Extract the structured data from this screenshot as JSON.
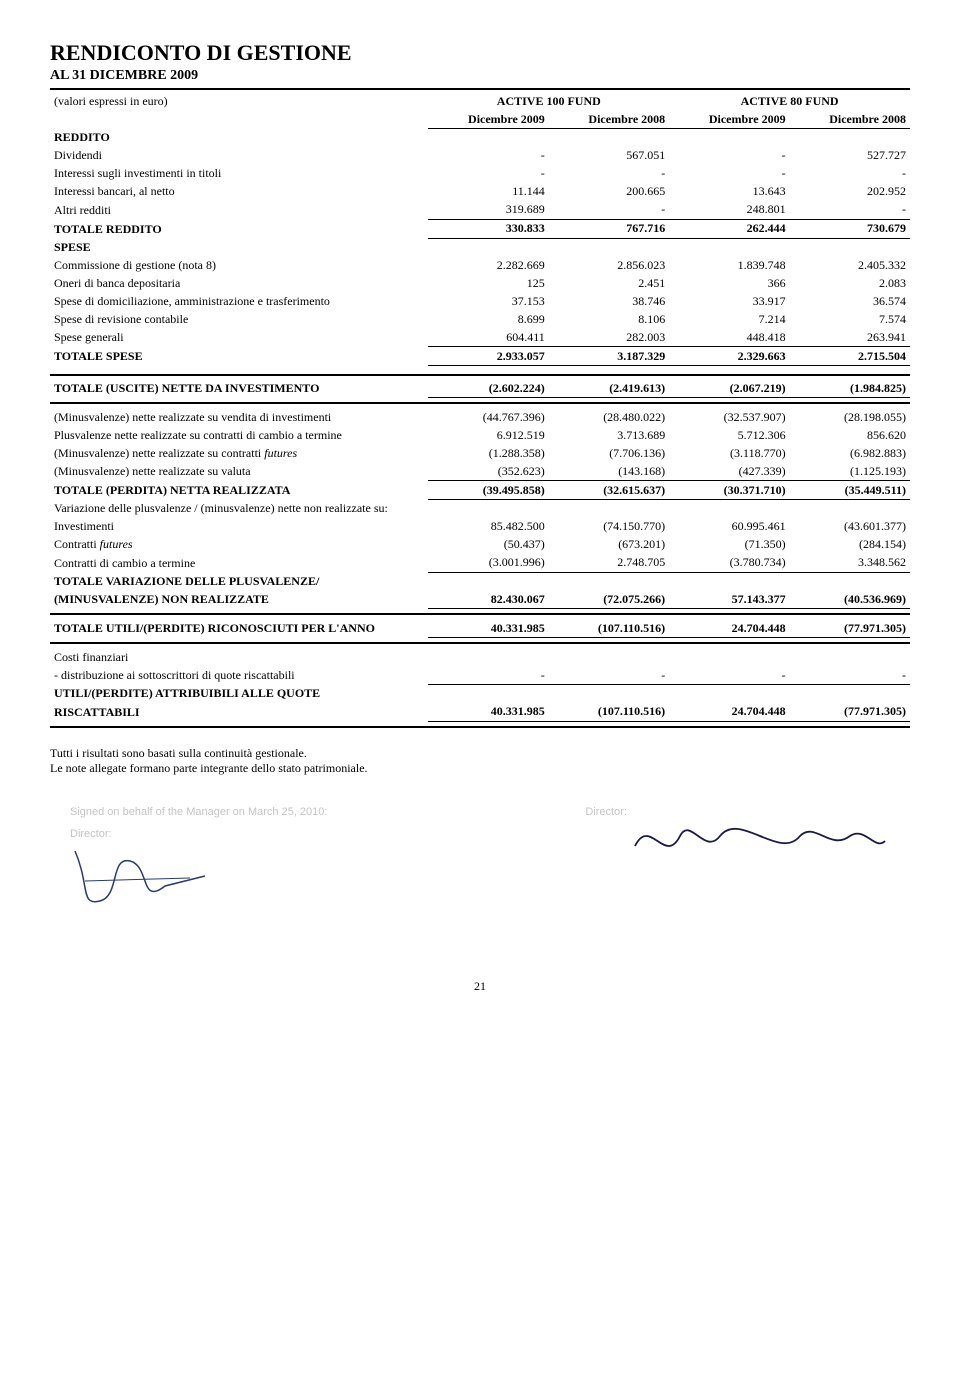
{
  "title": "RENDICONTO DI GESTIONE",
  "subtitle": "AL 31 DICEMBRE 2009",
  "units_note": "(valori espressi in euro)",
  "funds": [
    {
      "name": "ACTIVE 100 FUND",
      "years": [
        "Dicembre 2009",
        "Dicembre 2008"
      ]
    },
    {
      "name": "ACTIVE 80 FUND",
      "years": [
        "Dicembre 2009",
        "Dicembre 2008"
      ]
    }
  ],
  "sections": {
    "reddito": {
      "header": "REDDITO",
      "rows": [
        {
          "label": "Dividendi",
          "vals": [
            "-",
            "567.051",
            "-",
            "527.727"
          ]
        },
        {
          "label": "Interessi sugli investimenti in titoli",
          "vals": [
            "-",
            "-",
            "-",
            "-"
          ]
        },
        {
          "label": "Interessi bancari, al netto",
          "vals": [
            "11.144",
            "200.665",
            "13.643",
            "202.952"
          ]
        },
        {
          "label": "Altri redditi",
          "vals": [
            "319.689",
            "-",
            "248.801",
            "-"
          ],
          "underline": true
        }
      ],
      "total": {
        "label": "TOTALE REDDITO",
        "vals": [
          "330.833",
          "767.716",
          "262.444",
          "730.679"
        ]
      }
    },
    "spese": {
      "header": "SPESE",
      "rows": [
        {
          "label": "Commissione di gestione (nota 8)",
          "vals": [
            "2.282.669",
            "2.856.023",
            "1.839.748",
            "2.405.332"
          ]
        },
        {
          "label": "Oneri di banca depositaria",
          "vals": [
            "125",
            "2.451",
            "366",
            "2.083"
          ]
        },
        {
          "label": "Spese di domiciliazione, amministrazione e trasferimento",
          "vals": [
            "37.153",
            "38.746",
            "33.917",
            "36.574"
          ]
        },
        {
          "label": "Spese di revisione contabile",
          "vals": [
            "8.699",
            "8.106",
            "7.214",
            "7.574"
          ]
        },
        {
          "label": "Spese generali",
          "vals": [
            "604.411",
            "282.003",
            "448.418",
            "263.941"
          ],
          "underline": true
        }
      ],
      "total": {
        "label": "TOTALE SPESE",
        "vals": [
          "2.933.057",
          "3.187.329",
          "2.329.663",
          "2.715.504"
        ]
      }
    },
    "net_invest": {
      "label": "TOTALE (USCITE) NETTE DA INVESTIMENTO",
      "vals": [
        "(2.602.224)",
        "(2.419.613)",
        "(2.067.219)",
        "(1.984.825)"
      ]
    },
    "realized": {
      "rows": [
        {
          "label": "(Minusvalenze) nette realizzate su vendita di investimenti",
          "vals": [
            "(44.767.396)",
            "(28.480.022)",
            "(32.537.907)",
            "(28.198.055)"
          ]
        },
        {
          "label": "Plusvalenze nette realizzate su contratti di cambio a termine",
          "vals": [
            "6.912.519",
            "3.713.689",
            "5.712.306",
            "856.620"
          ]
        },
        {
          "label_html": "(Minusvalenze) nette realizzate su contratti <span class=\"italic-inline\">futures</span>",
          "vals": [
            "(1.288.358)",
            "(7.706.136)",
            "(3.118.770)",
            "(6.982.883)"
          ]
        },
        {
          "label": "(Minusvalenze) nette realizzate su valuta",
          "vals": [
            "(352.623)",
            "(143.168)",
            "(427.339)",
            "(1.125.193)"
          ],
          "underline": true
        }
      ],
      "total": {
        "label": "TOTALE (PERDITA) NETTA REALIZZATA",
        "vals": [
          "(39.495.858)",
          "(32.615.637)",
          "(30.371.710)",
          "(35.449.511)"
        ]
      }
    },
    "variation": {
      "header": "Variazione delle plusvalenze / (minusvalenze) nette non realizzate su:",
      "rows": [
        {
          "label": "Investimenti",
          "vals": [
            "85.482.500",
            "(74.150.770)",
            "60.995.461",
            "(43.601.377)"
          ]
        },
        {
          "label_html": "Contratti <span class=\"italic-inline\">futures</span>",
          "vals": [
            "(50.437)",
            "(673.201)",
            "(71.350)",
            "(284.154)"
          ]
        },
        {
          "label": "Contratti di cambio a termine",
          "vals": [
            "(3.001.996)",
            "2.748.705",
            "(3.780.734)",
            "3.348.562"
          ],
          "underline": true
        }
      ],
      "total_labels": [
        "TOTALE VARIAZIONE DELLE PLUSVALENZE/",
        "(MINUSVALENZE) NON REALIZZATE"
      ],
      "total_vals": [
        "82.430.067",
        "(72.075.266)",
        "57.143.377",
        "(40.536.969)"
      ]
    },
    "recognised": {
      "label": "TOTALE UTILI/(PERDITE) RICONOSCIUTI PER L'ANNO",
      "vals": [
        "40.331.985",
        "(107.110.516)",
        "24.704.448",
        "(77.971.305)"
      ]
    },
    "costi": {
      "header": "Costi finanziari",
      "rows": [
        {
          "label": "- distribuzione ai sottoscrittori di quote riscattabili",
          "vals": [
            "-",
            "-",
            "-",
            "-"
          ],
          "underline": true
        }
      ],
      "total_labels": [
        "UTILI/(PERDITE) ATTRIBUIBILI ALLE QUOTE",
        "RISCATTABILI"
      ],
      "total_vals": [
        "40.331.985",
        "(107.110.516)",
        "24.704.448",
        "(77.971.305)"
      ]
    }
  },
  "notes": [
    "Tutti i risultati sono basati sulla continuità gestionale.",
    "Le note allegate formano parte integrante dello stato patrimoniale."
  ],
  "sig": {
    "behalf": "Signed on behalf of the Manager on March 25, 2010:",
    "director": "Director:"
  },
  "page_number": "21",
  "colors": {
    "text": "#000000",
    "bg": "#ffffff",
    "sig_gray": "#888888"
  }
}
